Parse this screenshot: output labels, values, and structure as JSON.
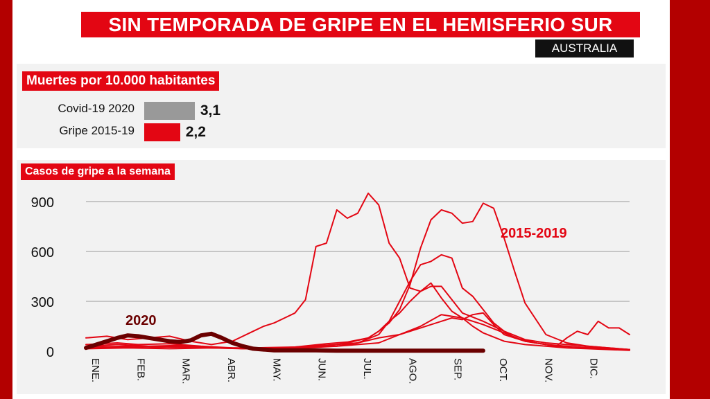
{
  "header": {
    "title": "SIN TEMPORADA DE GRIPE EN EL HEMISFERIO SUR",
    "subtitle": "AUSTRALIA"
  },
  "deaths": {
    "heading": "Muertes por 10.000 habitantes",
    "rows": [
      {
        "label": "Covid-19 2020",
        "value": 3.1,
        "display": "3,1",
        "color": "#999999"
      },
      {
        "label": "Gripe 2015-19",
        "value": 2.2,
        "display": "2,2",
        "color": "#e30613"
      }
    ]
  },
  "cases": {
    "heading": "Casos de gripe a la semana"
  },
  "chart_data": {
    "type": "line",
    "ylim": [
      0,
      900
    ],
    "yticks": [
      0,
      300,
      600,
      900
    ],
    "grid": true,
    "months": [
      "ENE.",
      "FEB.",
      "MAR.",
      "ABR.",
      "MAY.",
      "JUN.",
      "JUL.",
      "AGO.",
      "SEP.",
      "OCT.",
      "NOV.",
      "DIC."
    ],
    "x_unit": "week",
    "annotations": [
      {
        "text": "2015-2019",
        "color": "#e30613"
      },
      {
        "text": "2020",
        "color": "#6b0000"
      }
    ],
    "colors": {
      "past": "#e30613",
      "current": "#6b0000",
      "grid": "#999999"
    },
    "series": [
      {
        "name": "2015-2019",
        "group": "past",
        "x": [
          0,
          3,
          5,
          8,
          11,
          14,
          17,
          20,
          23,
          25,
          27,
          28,
          29,
          30,
          31,
          32,
          33,
          34,
          35,
          36,
          37,
          38,
          40,
          42,
          44,
          46,
          48,
          50,
          52
        ],
        "y": [
          40,
          50,
          40,
          45,
          30,
          20,
          15,
          25,
          45,
          55,
          80,
          120,
          180,
          230,
          300,
          360,
          410,
          320,
          240,
          200,
          150,
          110,
          60,
          40,
          30,
          20,
          15,
          10,
          5
        ]
      },
      {
        "name": "2015-2019",
        "group": "past",
        "x": [
          0,
          3,
          6,
          9,
          12,
          15,
          18,
          21,
          24,
          26,
          28,
          29,
          30,
          31,
          32,
          33,
          34,
          35,
          36,
          37,
          38,
          39,
          40,
          41,
          43,
          45,
          47,
          49,
          52
        ],
        "y": [
          30,
          40,
          30,
          35,
          25,
          15,
          15,
          20,
          30,
          50,
          100,
          180,
          300,
          420,
          520,
          540,
          580,
          560,
          380,
          330,
          250,
          170,
          120,
          80,
          50,
          30,
          25,
          20,
          10
        ]
      },
      {
        "name": "2015-2019",
        "group": "past",
        "x": [
          0,
          4,
          8,
          12,
          16,
          20,
          23,
          25,
          27,
          28,
          29,
          30,
          31,
          32,
          33,
          34,
          35,
          36,
          37,
          38,
          39,
          40,
          41,
          42,
          44,
          46,
          48,
          50,
          52
        ],
        "y": [
          25,
          30,
          25,
          20,
          15,
          20,
          30,
          50,
          80,
          120,
          170,
          250,
          400,
          620,
          790,
          850,
          830,
          770,
          780,
          890,
          860,
          680,
          480,
          290,
          100,
          50,
          30,
          20,
          10
        ]
      },
      {
        "name": "2015-2019",
        "group": "past",
        "x": [
          0,
          2,
          4,
          6,
          8,
          10,
          12,
          14,
          16,
          17,
          18,
          19,
          20,
          21,
          22,
          23,
          24,
          25,
          26,
          27,
          28,
          29,
          30,
          31,
          32,
          33,
          34,
          36,
          38,
          40,
          42,
          44,
          46,
          48,
          50,
          52
        ],
        "y": [
          80,
          90,
          70,
          80,
          90,
          60,
          40,
          60,
          120,
          150,
          170,
          200,
          230,
          310,
          630,
          650,
          850,
          800,
          830,
          950,
          880,
          650,
          560,
          380,
          360,
          390,
          390,
          230,
          180,
          120,
          70,
          50,
          40,
          30,
          20,
          10
        ]
      },
      {
        "name": "2015-2019",
        "group": "past",
        "x": [
          0,
          3,
          6,
          9,
          12,
          15,
          18,
          21,
          24,
          26,
          28,
          30,
          32,
          34,
          36,
          38,
          40,
          42,
          44,
          45,
          46,
          47,
          48,
          49,
          50,
          51,
          52
        ],
        "y": [
          20,
          25,
          20,
          30,
          20,
          15,
          20,
          25,
          30,
          40,
          50,
          100,
          150,
          220,
          200,
          160,
          110,
          60,
          40,
          30,
          80,
          120,
          100,
          180,
          140,
          140,
          100
        ]
      },
      {
        "name": "2015-2019",
        "group": "past",
        "x": [
          0,
          4,
          8,
          12,
          16,
          20,
          24,
          26,
          28,
          30,
          32,
          34,
          35,
          36,
          37,
          38,
          39,
          40,
          42,
          44,
          46,
          48,
          50,
          52
        ],
        "y": [
          15,
          20,
          15,
          20,
          20,
          25,
          40,
          50,
          80,
          100,
          140,
          180,
          200,
          190,
          220,
          230,
          160,
          100,
          60,
          40,
          30,
          20,
          15,
          10
        ]
      },
      {
        "name": "2020",
        "group": "current",
        "x": [
          0,
          1,
          2,
          3,
          4,
          5,
          6,
          7,
          8,
          9,
          10,
          11,
          12,
          13,
          14,
          15,
          16,
          17,
          18,
          20,
          22,
          24,
          26,
          28,
          30,
          32,
          34,
          36,
          38
        ],
        "y": [
          20,
          40,
          60,
          80,
          95,
          90,
          80,
          70,
          60,
          55,
          65,
          95,
          105,
          80,
          50,
          30,
          15,
          10,
          5,
          5,
          5,
          3,
          3,
          3,
          3,
          3,
          3,
          3,
          3
        ]
      }
    ]
  }
}
